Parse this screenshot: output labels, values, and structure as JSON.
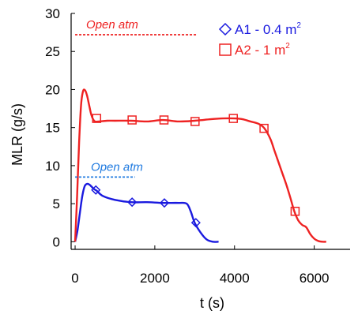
{
  "chart_data": {
    "type": "line",
    "xlabel": "t (s)",
    "ylabel": "MLR (g/s)",
    "xlim": [
      -100,
      6900
    ],
    "ylim": [
      -1,
      30
    ],
    "xticks": [
      0,
      2000,
      4000,
      6000
    ],
    "yticks": [
      0,
      5,
      10,
      15,
      20,
      25,
      30
    ],
    "grid": false,
    "legend_position": "top-right",
    "series": [
      {
        "name": "A1 - 0.4 m",
        "name_sup": "2",
        "color": "#1a1adf",
        "marker": "diamond",
        "x": [
          0,
          60,
          120,
          180,
          240,
          300,
          360,
          420,
          480,
          540,
          700,
          1000,
          1400,
          1800,
          2200,
          2600,
          2800,
          2900,
          3000,
          3150,
          3300,
          3450,
          3600
        ],
        "y": [
          0.0,
          1.5,
          3.8,
          6.0,
          7.3,
          7.6,
          7.5,
          7.2,
          6.9,
          6.7,
          6.0,
          5.5,
          5.2,
          5.2,
          5.1,
          5.1,
          5.0,
          4.0,
          2.5,
          1.2,
          0.3,
          0.0,
          0.0
        ],
        "marker_x": [
          520,
          1430,
          2240,
          3030
        ],
        "marker_y": [
          6.8,
          5.2,
          5.1,
          2.5
        ]
      },
      {
        "name": "A2 - 1 m",
        "name_sup": "2",
        "color": "#ee2222",
        "marker": "square",
        "x": [
          0,
          50,
          100,
          150,
          200,
          250,
          300,
          350,
          400,
          450,
          500,
          600,
          800,
          1000,
          1400,
          1800,
          2200,
          2600,
          3000,
          3400,
          3700,
          4000,
          4200,
          4400,
          4600,
          4750,
          4900,
          5000,
          5100,
          5200,
          5300,
          5400,
          5500,
          5600,
          5700,
          5800,
          5900,
          6000,
          6100,
          6200,
          6300
        ],
        "y": [
          0.0,
          6.0,
          13.0,
          18.0,
          19.8,
          19.9,
          19.2,
          18.0,
          16.8,
          16.1,
          15.8,
          15.8,
          15.9,
          15.9,
          15.9,
          15.8,
          16.0,
          15.8,
          15.9,
          16.1,
          16.2,
          16.2,
          16.1,
          15.8,
          15.5,
          14.9,
          13.5,
          12.0,
          10.5,
          9.0,
          7.5,
          5.8,
          4.0,
          2.8,
          2.2,
          1.9,
          1.0,
          0.4,
          0.1,
          0.0,
          0.0
        ],
        "marker_x": [
          540,
          1430,
          2230,
          3010,
          3970,
          4740,
          5520
        ],
        "marker_y": [
          16.2,
          16.0,
          16.0,
          15.8,
          16.2,
          14.9,
          4.0
        ]
      }
    ],
    "annotations": [
      {
        "text": "Open atm",
        "color": "#ee2222",
        "y": 27.2,
        "x_start": 0,
        "x_end": 3050
      },
      {
        "text": "Open atm",
        "color": "#1f7ae0",
        "y": 8.5,
        "x_start": 0,
        "x_end": 1500
      }
    ]
  }
}
